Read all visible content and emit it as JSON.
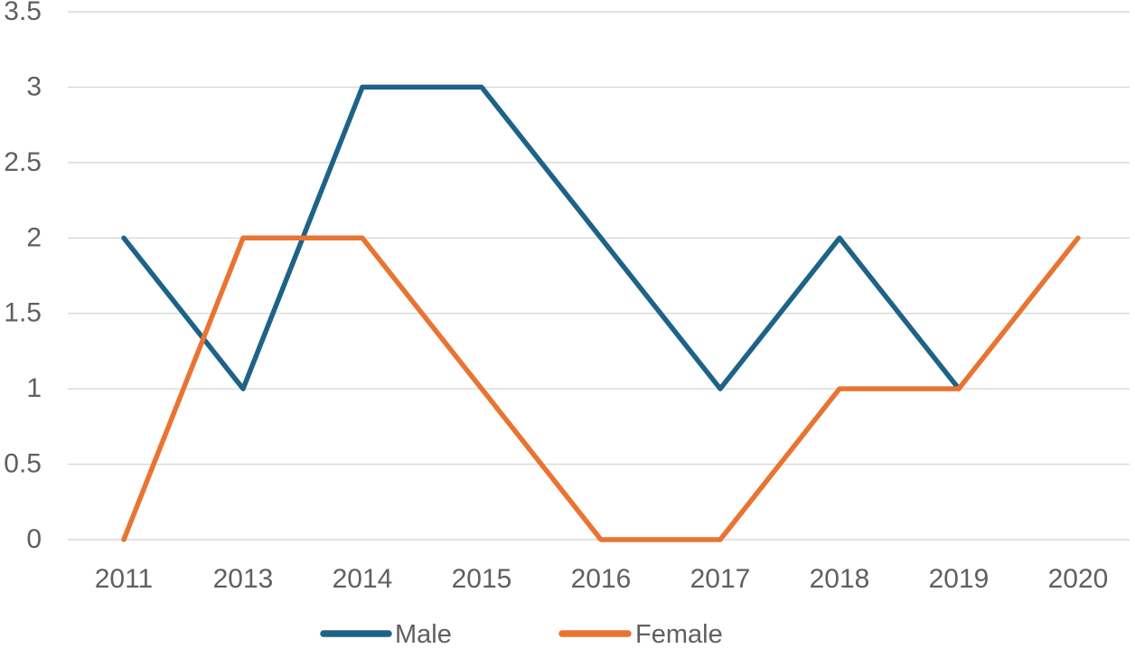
{
  "chart_data": {
    "type": "line",
    "title": "",
    "xlabel": "",
    "ylabel": "",
    "categories": [
      "2011",
      "2013",
      "2014",
      "2015",
      "2016",
      "2017",
      "2018",
      "2019",
      "2020"
    ],
    "series": [
      {
        "name": "Male",
        "color": "#1E6387",
        "values": [
          2,
          1,
          3,
          3,
          2,
          1,
          2,
          1,
          null
        ]
      },
      {
        "name": "Female",
        "color": "#E97432",
        "values": [
          0,
          2,
          2,
          1,
          0,
          0,
          1,
          1,
          2
        ]
      }
    ],
    "y_axis": {
      "min": 0,
      "max": 3.5,
      "step": 0.5,
      "tick_labels": [
        "0",
        "0.5",
        "1",
        "1.5",
        "2",
        "2.5",
        "3",
        "3.5"
      ]
    },
    "grid": "horizontal-only",
    "gridline_color": "#d8d8d8",
    "tick_text_color": "#5f5f5f",
    "legend_position": "bottom",
    "legend": [
      {
        "label": "Male",
        "color": "#1E6387"
      },
      {
        "label": "Female",
        "color": "#E97432"
      }
    ]
  }
}
